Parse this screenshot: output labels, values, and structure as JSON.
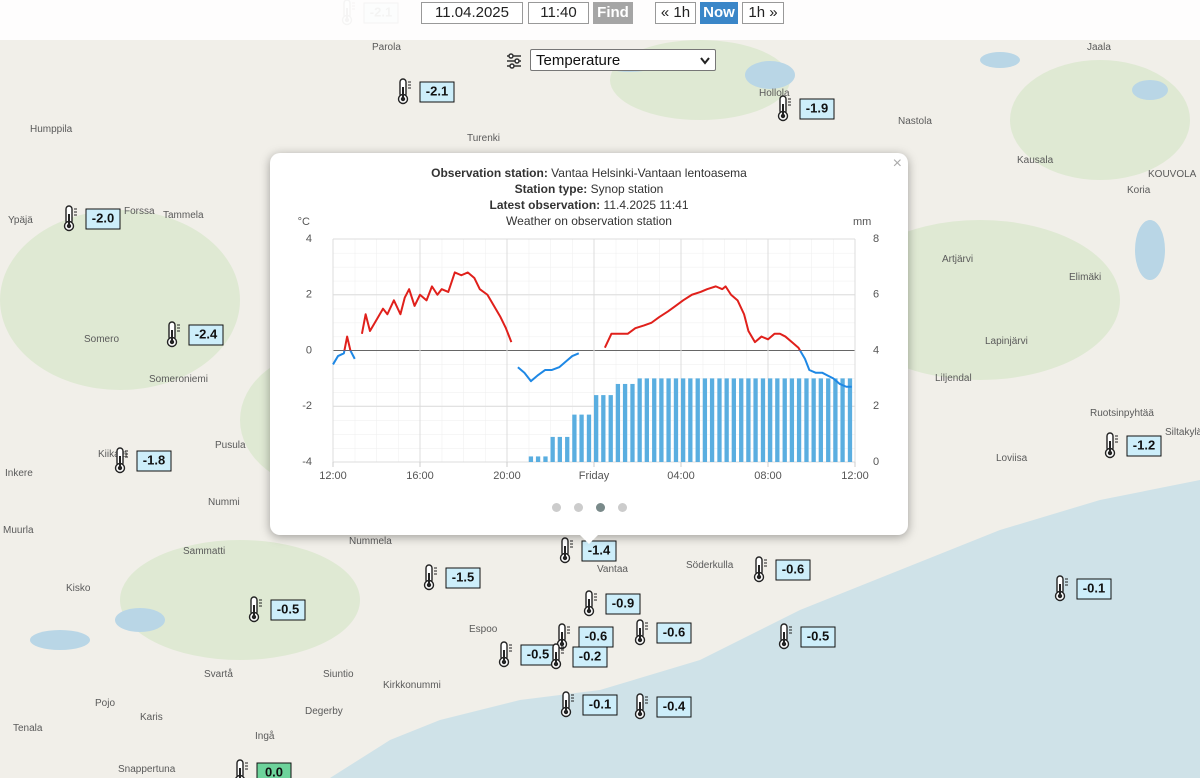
{
  "toolbar": {
    "date": "11.04.2025",
    "time": "11:40",
    "find": "Find",
    "back": "« 1h",
    "now": "Now",
    "forward": "1h »"
  },
  "layer_select": "Temperature",
  "places": [
    "Parola",
    "Jaala",
    "Hollola",
    "Humppila",
    "Nastola",
    "Turenki",
    "Kausala",
    "KOUVOLA",
    "Koria",
    "Forssa",
    "Tammela",
    "Ypäjä",
    "Artjärvi",
    "Elimäki",
    "Somero",
    "Lapinjärvi",
    "Someroniemi",
    "Liljendal",
    "Ruotsinpyhtää",
    "Siltakylä",
    "Pusula",
    "Kiikala",
    "Loviisa",
    "Inkere",
    "Nummi",
    "Muurla",
    "Nummela",
    "Sammatti",
    "Söderkulla",
    "Vantaa",
    "Kisko",
    "Espoo",
    "Svartå",
    "Siuntio",
    "Kirkkonummi",
    "Pojo",
    "Degerby",
    "Karis",
    "Tenala",
    "Ingå",
    "Snappertuna"
  ],
  "stations": [
    "-2.1",
    "-2.1",
    "-1.9",
    "-2.0",
    "-2.4",
    "-1.8",
    "-1.2",
    "-1.4",
    "-1.5",
    "-0.5",
    "-0.9",
    "-0.6",
    "-0.6",
    "-0.5",
    "-0.2",
    "-0.1",
    "-0.4",
    "-0.6",
    "-0.5",
    "-0.1",
    "0.0"
  ],
  "popup": {
    "station_label": "Observation station:",
    "station": "Vantaa Helsinki-Vantaan lentoasema",
    "type_label": "Station type:",
    "type": "Synop station",
    "latest_label": "Latest observation:",
    "latest": "11.4.2025 11:41"
  },
  "chart_data": {
    "type": "line",
    "title": "Weather on observation station",
    "y_label": "°C",
    "y2_label": "mm",
    "xlim": [
      12,
      36
    ],
    "xticks": [
      {
        "value": 12,
        "label": "12:00"
      },
      {
        "value": 16,
        "label": "16:00"
      },
      {
        "value": 20,
        "label": "20:00"
      },
      {
        "value": 24,
        "label": "Friday"
      },
      {
        "value": 28,
        "label": "04:00"
      },
      {
        "value": 32,
        "label": "08:00"
      },
      {
        "value": 36,
        "label": "12:00"
      }
    ],
    "ylim": [
      -4,
      4
    ],
    "yticks": [
      -4,
      -2,
      0,
      2,
      4
    ],
    "y2lim": [
      0,
      8
    ],
    "y2ticks": [
      0,
      2,
      4,
      6,
      8
    ],
    "grid": true,
    "zero_line": true,
    "series": [
      {
        "type": "line",
        "color": "#e0201b",
        "negative_color": "#1e88e5",
        "x": [
          12.0,
          12.23,
          12.5,
          12.65,
          12.8,
          13.0,
          13.15,
          13.33,
          13.5,
          13.7,
          14.0,
          14.3,
          14.5,
          14.8,
          15.1,
          15.3,
          15.5,
          15.75,
          16.0,
          16.3,
          16.55,
          16.8,
          17.0,
          17.3,
          17.6,
          17.9,
          18.2,
          18.5,
          18.75,
          19.1,
          19.4,
          19.7,
          19.95,
          20.2,
          20.35,
          20.5,
          20.8,
          21.1,
          21.4,
          21.75,
          22.05,
          22.4,
          22.7,
          23.0,
          23.3,
          23.9,
          24.5,
          24.8,
          25.2,
          25.55,
          25.9,
          26.3,
          26.65,
          27.0,
          27.4,
          27.75,
          28.1,
          28.5,
          28.9,
          29.2,
          29.6,
          29.9,
          30.05,
          30.3,
          30.6,
          30.9,
          31.1,
          31.4,
          31.7,
          32.0,
          32.3,
          32.55,
          32.8,
          33.1,
          33.4,
          33.7,
          33.9,
          34.2,
          34.5,
          34.75,
          35.0,
          35.3,
          35.6,
          35.85
        ],
        "values": [
          -0.5,
          -0.2,
          -0.1,
          0.5,
          0.0,
          -0.3,
          null,
          0.6,
          1.3,
          0.7,
          1.1,
          1.5,
          1.3,
          1.8,
          1.3,
          1.9,
          2.2,
          1.6,
          2.0,
          1.8,
          2.3,
          2.0,
          2.2,
          2.1,
          2.8,
          2.7,
          2.8,
          2.6,
          2.2,
          2.0,
          1.6,
          1.2,
          0.8,
          0.3,
          null,
          -0.6,
          -0.8,
          -1.1,
          -0.9,
          -0.7,
          -0.7,
          -0.6,
          -0.4,
          -0.2,
          -0.1,
          null,
          0.1,
          0.6,
          0.6,
          0.6,
          0.8,
          0.9,
          1.0,
          1.2,
          1.4,
          1.6,
          1.8,
          2.0,
          2.1,
          2.2,
          2.3,
          2.2,
          2.3,
          2.0,
          1.8,
          1.3,
          0.7,
          0.3,
          0.5,
          0.4,
          0.6,
          0.6,
          0.5,
          0.3,
          0.1,
          -0.3,
          -0.7,
          -0.8,
          -0.8,
          -0.9,
          -1.0,
          -1.2,
          -1.3,
          -1.3
        ]
      },
      {
        "type": "bar",
        "axis": "y2",
        "color": "#5aaee0",
        "x": [
          21,
          21.33,
          21.67,
          22,
          22.33,
          22.67,
          23,
          23.33,
          23.67,
          24,
          24.33,
          24.67,
          25,
          25.33,
          25.67,
          26,
          26.33,
          26.67,
          27,
          27.33,
          27.67,
          28,
          28.33,
          28.67,
          29,
          29.33,
          29.67,
          30,
          30.33,
          30.67,
          31,
          31.33,
          31.67,
          32,
          32.33,
          32.67,
          33,
          33.33,
          33.67,
          34,
          34.33,
          34.67,
          35,
          35.33,
          35.67
        ],
        "values": [
          0.2,
          0.2,
          0.2,
          0.9,
          0.9,
          0.9,
          1.7,
          1.7,
          1.7,
          2.4,
          2.4,
          2.4,
          2.8,
          2.8,
          2.8,
          3.0,
          3.0,
          3.0,
          3.0,
          3.0,
          3.0,
          3.0,
          3.0,
          3.0,
          3.0,
          3.0,
          3.0,
          3.0,
          3.0,
          3.0,
          3.0,
          3.0,
          3.0,
          3.0,
          3.0,
          3.0,
          3.0,
          3.0,
          3.0,
          3.0,
          3.0,
          3.0,
          3.0,
          3.0,
          3.0
        ]
      }
    ]
  }
}
